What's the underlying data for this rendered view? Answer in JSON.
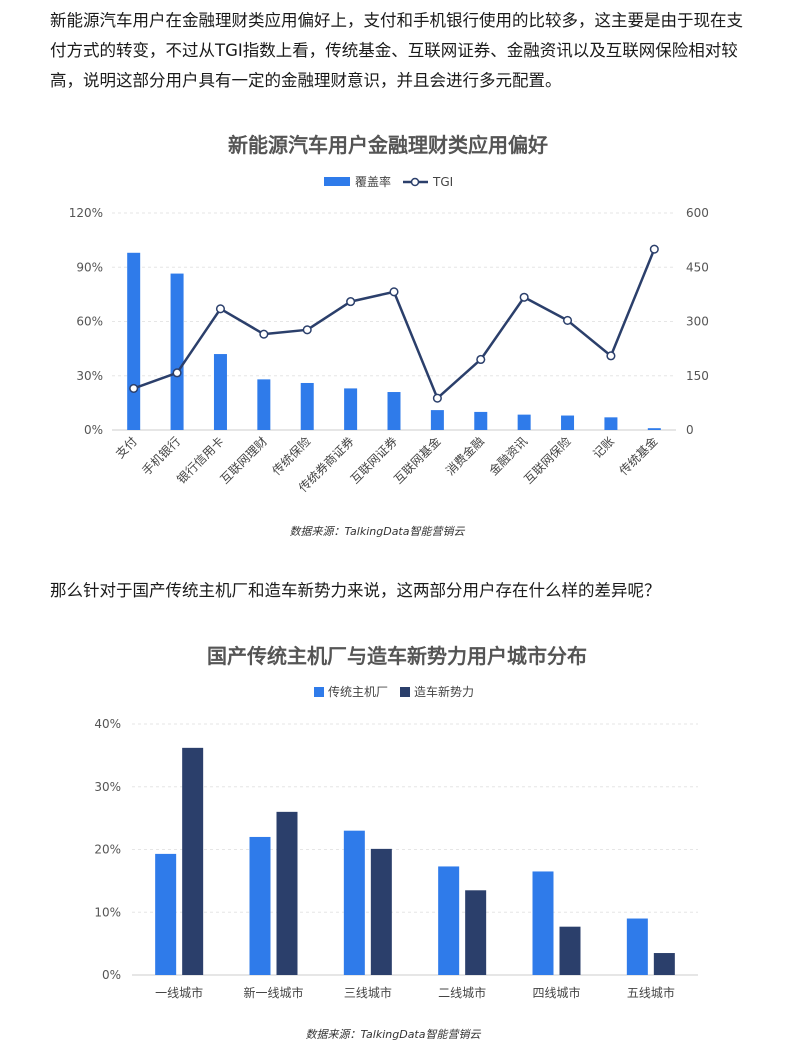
{
  "paragraphs": {
    "intro": "新能源汽车用户在金融理财类应用偏好上，支付和手机银行使用的比较多，这主要是由于现在支付方式的转变，不过从TGI指数上看，传统基金、互联网证券、金融资讯以及互联网保险相对较高，说明这部分用户具有一定的金融理财意识，并且会进行多元配置。",
    "question": "那么针对于国产传统主机厂和造车新势力来说，这两部分用户存在什么样的差异呢？"
  },
  "colors": {
    "blue": "#2f7bea",
    "navy": "#2b3f6b",
    "grid": "#e6e6e6"
  },
  "chart_data": [
    {
      "type": "bar+line",
      "title": "新能源汽车用户金融理财类应用偏好",
      "legend": [
        "覆盖率",
        "TGI"
      ],
      "legend_position": "top",
      "source": "数据来源：TalkingData智能营销云",
      "categories": [
        "支付",
        "手机银行",
        "银行信用卡",
        "互联网理财",
        "传统保险",
        "传统券商证券",
        "互联网证券",
        "互联网基金",
        "消费金融",
        "金融资讯",
        "互联网保险",
        "记账",
        "传统基金"
      ],
      "series": [
        {
          "name": "覆盖率",
          "kind": "bar",
          "axis": "left",
          "unit": "%",
          "values": [
            98,
            86.5,
            42,
            28,
            26,
            23,
            21,
            11,
            10,
            8.5,
            8,
            7,
            1
          ]
        },
        {
          "name": "TGI",
          "kind": "line",
          "axis": "right",
          "values": [
            115,
            158,
            335,
            265,
            277,
            355,
            382,
            88,
            195,
            367,
            303,
            205,
            500
          ]
        }
      ],
      "y_left": {
        "ticks": [
          "0%",
          "30%",
          "60%",
          "90%",
          "120%"
        ],
        "lim": [
          0,
          120
        ]
      },
      "y_right": {
        "ticks": [
          "0",
          "150",
          "300",
          "450",
          "600"
        ],
        "lim": [
          0,
          600
        ]
      },
      "grid": true
    },
    {
      "type": "bar",
      "title": "国产传统主机厂与造车新势力用户城市分布",
      "legend": [
        "传统主机厂",
        "造车新势力"
      ],
      "legend_position": "top",
      "source": "数据来源：TalkingData智能营销云",
      "categories": [
        "一线城市",
        "新一线城市",
        "三线城市",
        "二线城市",
        "四线城市",
        "五线城市"
      ],
      "series": [
        {
          "name": "传统主机厂",
          "unit": "%",
          "values": [
            19.3,
            22,
            23,
            17.3,
            16.5,
            9
          ]
        },
        {
          "name": "造车新势力",
          "unit": "%",
          "values": [
            36.2,
            26,
            20.1,
            13.5,
            7.7,
            3.5
          ]
        }
      ],
      "y": {
        "ticks": [
          "0%",
          "10%",
          "20%",
          "30%",
          "40%"
        ],
        "lim": [
          0,
          40
        ]
      },
      "grid": true
    }
  ]
}
